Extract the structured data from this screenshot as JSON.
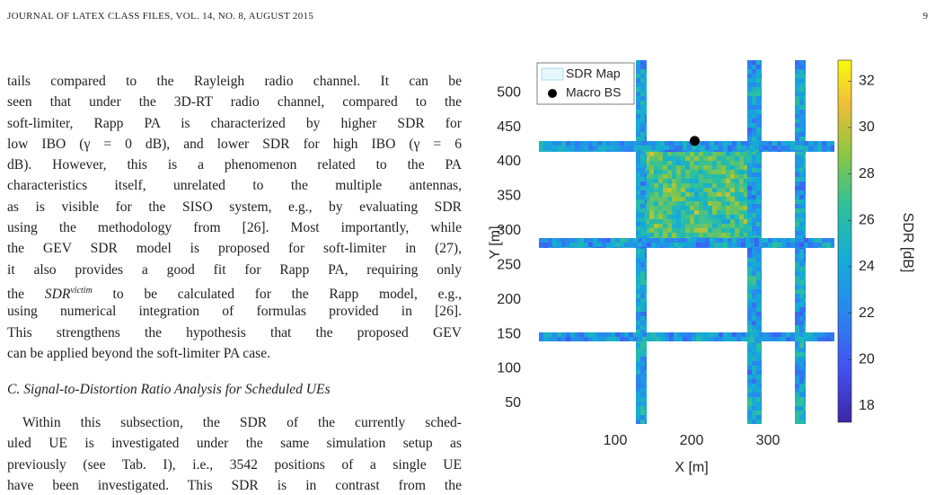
{
  "header": {
    "journal": "JOURNAL OF LATEX CLASS FILES, VOL. 14, NO. 8, AUGUST 2015",
    "page": "9"
  },
  "paragraph": {
    "lines": [
      "tails compared to the Rayleigh radio channel. It can be",
      "seen that under the 3D-RT radio channel, compared to the",
      "soft-limiter, Rapp PA is characterized by higher SDR for",
      "low IBO (γ = 0 dB), and lower SDR for high IBO (γ = 6",
      "dB). However, this is a phenomenon related to the PA",
      "characteristics itself, unrelated to the multiple antennas,",
      "as is visible for the SISO system, e.g., by evaluating SDR",
      "using the methodology from [26]. Most importantly, while",
      "the GEV SDR model is proposed for soft-limiter in (27),",
      "it also provides a good fit for Rapp PA, requiring only",
      {
        "pre": "the ",
        "math": "SDR",
        "sup": "victim",
        "post": " to be calculated for the Rapp model, e.g.,"
      },
      "using numerical integration of formulas provided in [26].",
      "This strengthens the hypothesis that the proposed GEV",
      "can be applied beyond the soft-limiter PA case."
    ]
  },
  "section": {
    "title": "C. Signal-to-Distortion Ratio Analysis for Scheduled UEs"
  },
  "paragraph2": {
    "lines": [
      "Within this subsection, the SDR of the currently sched-",
      "uled UE is investigated under the same simulation setup as",
      "previously (see Tab. I), i.e., 3542 positions of a single UE",
      "have been investigated. This SDR is in contrast from the"
    ]
  },
  "chart_data": {
    "type": "heatmap",
    "xlabel": "X [m]",
    "ylabel": "Y [m]",
    "colorbar_label": "SDR [dB]",
    "map_label": "SDR Map",
    "colormap": "parula",
    "legend_position": "upper left",
    "xlim": [
      0,
      387
    ],
    "xticks": [
      100,
      200,
      300
    ],
    "ylim": [
      20,
      547
    ],
    "yticks": [
      50,
      100,
      150,
      200,
      250,
      300,
      350,
      400,
      450,
      500
    ],
    "clim": [
      17.3,
      32.9
    ],
    "cticks": [
      18,
      20,
      22,
      24,
      26,
      28,
      30,
      32
    ],
    "series": [
      {
        "name": "Macro BS",
        "color": "#000000",
        "x": [
          204
        ],
        "values": [
          430
        ]
      }
    ]
  }
}
